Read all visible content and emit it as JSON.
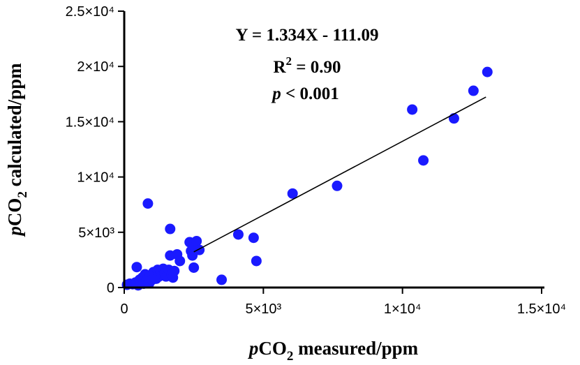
{
  "chart_data": {
    "type": "scatter",
    "title": "",
    "xlabel": {
      "italic": "p",
      "base": "CO",
      "sub": "2",
      "rest": " measured/ppm"
    },
    "ylabel": {
      "italic": "p",
      "base": "CO",
      "sub": "2",
      "rest": " calculated/ppm"
    },
    "xlim": [
      0,
      15000
    ],
    "ylim": [
      0,
      25000
    ],
    "x_ticks": [
      {
        "value": 0,
        "label": "0"
      },
      {
        "value": 5000,
        "label": "5×10³"
      },
      {
        "value": 10000,
        "label": "1×10⁴"
      },
      {
        "value": 15000,
        "label": "1.5×10⁴"
      }
    ],
    "y_ticks": [
      {
        "value": 0,
        "label": "0"
      },
      {
        "value": 5000,
        "label": "5×10³"
      },
      {
        "value": 10000,
        "label": "1×10⁴"
      },
      {
        "value": 15000,
        "label": "1.5×10⁴"
      },
      {
        "value": 20000,
        "label": "2×10⁴"
      },
      {
        "value": 25000,
        "label": "2.5×10⁴"
      }
    ],
    "grid": false,
    "marker_color": "#1a1aff",
    "points": [
      [
        100,
        250
      ],
      [
        200,
        350
      ],
      [
        300,
        300
      ],
      [
        400,
        450
      ],
      [
        450,
        1850
      ],
      [
        500,
        200
      ],
      [
        550,
        700
      ],
      [
        600,
        500
      ],
      [
        650,
        900
      ],
      [
        700,
        350
      ],
      [
        750,
        1200
      ],
      [
        800,
        600
      ],
      [
        850,
        800
      ],
      [
        850,
        7600
      ],
      [
        900,
        400
      ],
      [
        950,
        1000
      ],
      [
        1000,
        700
      ],
      [
        1050,
        1400
      ],
      [
        1100,
        1200
      ],
      [
        1150,
        800
      ],
      [
        1200,
        1600
      ],
      [
        1250,
        1000
      ],
      [
        1300,
        1500
      ],
      [
        1350,
        1200
      ],
      [
        1400,
        1700
      ],
      [
        1450,
        1300
      ],
      [
        1500,
        1000
      ],
      [
        1550,
        1400
      ],
      [
        1600,
        1600
      ],
      [
        1650,
        2900
      ],
      [
        1650,
        5300
      ],
      [
        1700,
        1200
      ],
      [
        1750,
        900
      ],
      [
        1800,
        1500
      ],
      [
        1900,
        3000
      ],
      [
        2000,
        2400
      ],
      [
        2350,
        4100
      ],
      [
        2400,
        3300
      ],
      [
        2450,
        2900
      ],
      [
        2500,
        1800
      ],
      [
        2550,
        3600
      ],
      [
        2600,
        4200
      ],
      [
        2700,
        3400
      ],
      [
        3500,
        700
      ],
      [
        4100,
        4800
      ],
      [
        4650,
        4500
      ],
      [
        4750,
        2400
      ],
      [
        6050,
        8500
      ],
      [
        7650,
        9200
      ],
      [
        10350,
        16100
      ],
      [
        10750,
        11500
      ],
      [
        11850,
        15300
      ],
      [
        12550,
        17800
      ],
      [
        13050,
        19500
      ]
    ],
    "fit_line": {
      "x": [
        2500,
        13000
      ],
      "equation": "Y = 1.334X - 111.09",
      "slope": 1.334,
      "intercept": -111.09
    },
    "annotations": {
      "equation": "Y = 1.334X - 111.09",
      "r2_base": "R",
      "r2_sup": "2",
      "r2_rest": " = 0.90",
      "p_italic": "p",
      "p_rest": " < 0.001"
    }
  }
}
